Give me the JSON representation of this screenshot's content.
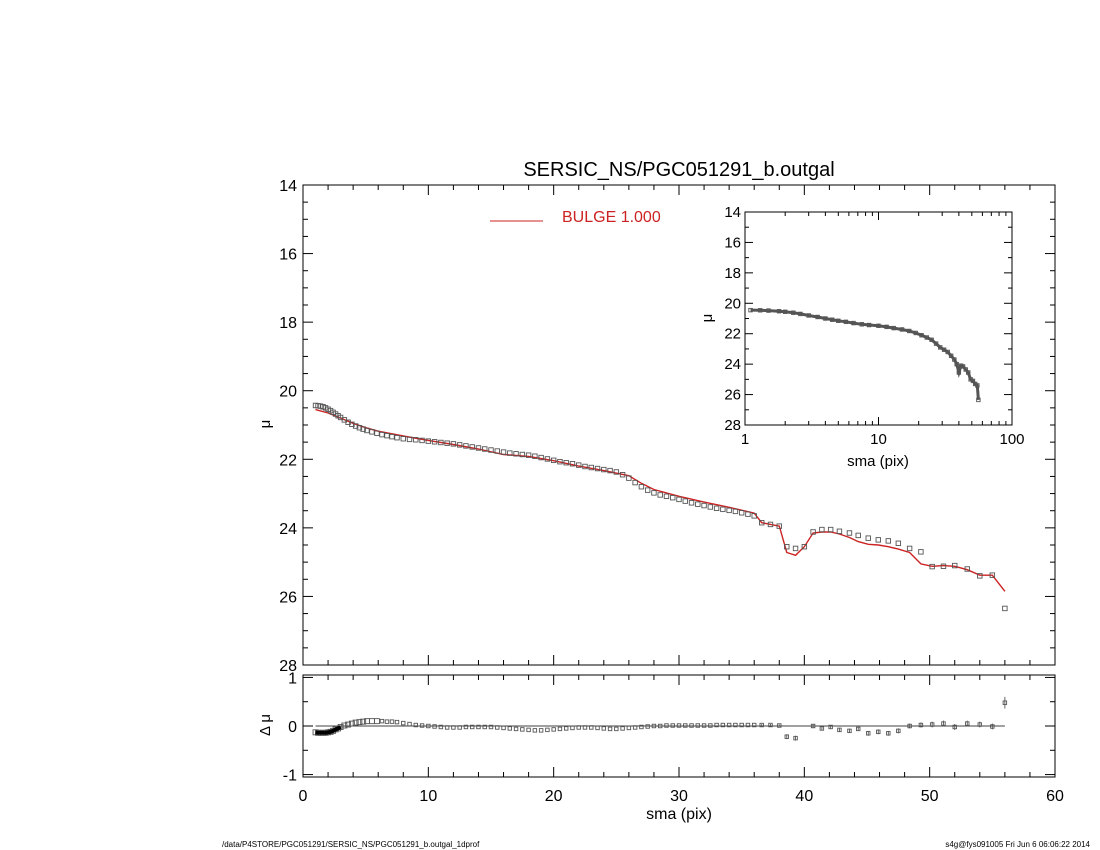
{
  "chart_data": [
    {
      "type": "scatter",
      "panel": "main",
      "title": "SERSIC_NS/PGC051291_b.outgal",
      "ylabel": "μ",
      "xlim": [
        0,
        60
      ],
      "ylim": [
        28,
        14
      ],
      "yreversed": true,
      "xticks": [],
      "yticks": [
        "14",
        "16",
        "18",
        "20",
        "22",
        "24",
        "26",
        "28"
      ],
      "legend": {
        "placement": "top-center",
        "label": "BULGE  1.000",
        "color": "#cc2222"
      },
      "series": [
        {
          "kind": "data",
          "marker": "open-square",
          "x": [
            1.0,
            1.2,
            1.4,
            1.6,
            1.8,
            2.0,
            2.2,
            2.4,
            2.6,
            2.8,
            3.0,
            3.3,
            3.6,
            3.9,
            4.2,
            4.5,
            4.8,
            5.1,
            5.5,
            5.9,
            6.3,
            6.7,
            7.1,
            7.5,
            8.0,
            8.5,
            9.0,
            9.5,
            10.0,
            10.5,
            11.0,
            11.5,
            12.0,
            12.5,
            13.0,
            13.5,
            14.0,
            14.5,
            15.0,
            15.5,
            16.0,
            16.5,
            17.0,
            17.5,
            18.0,
            18.5,
            19.0,
            19.5,
            20.0,
            20.5,
            21.0,
            21.5,
            22.0,
            22.5,
            23.0,
            23.5,
            24.0,
            24.5,
            25.0,
            25.5,
            26.0,
            26.5,
            27.0,
            27.5,
            28.0,
            28.5,
            29.0,
            29.5,
            30.0,
            30.5,
            31.0,
            31.5,
            32.0,
            32.5,
            33.0,
            33.5,
            34.0,
            34.5,
            35.0,
            35.5,
            36.0,
            36.6,
            37.3,
            38.0,
            38.6,
            39.3,
            40.0,
            40.7,
            41.4,
            42.1,
            42.8,
            43.6,
            44.3,
            45.1,
            45.9,
            46.7,
            47.5,
            48.4,
            49.3,
            50.2,
            51.1,
            52.0,
            53.0,
            54.0,
            55.0,
            56.0
          ],
          "y": [
            20.43,
            20.44,
            20.45,
            20.47,
            20.5,
            20.54,
            20.58,
            20.63,
            20.68,
            20.73,
            20.78,
            20.85,
            20.92,
            20.98,
            21.03,
            21.08,
            21.12,
            21.16,
            21.2,
            21.24,
            21.28,
            21.31,
            21.34,
            21.37,
            21.4,
            21.42,
            21.43,
            21.45,
            21.47,
            21.49,
            21.51,
            21.53,
            21.55,
            21.58,
            21.61,
            21.64,
            21.67,
            21.7,
            21.73,
            21.76,
            21.79,
            21.82,
            21.84,
            21.86,
            21.88,
            21.91,
            21.95,
            21.99,
            22.03,
            22.07,
            22.1,
            22.13,
            22.17,
            22.21,
            22.24,
            22.27,
            22.3,
            22.33,
            22.37,
            22.45,
            22.55,
            22.68,
            22.8,
            22.9,
            22.98,
            23.04,
            23.08,
            23.12,
            23.17,
            23.22,
            23.27,
            23.31,
            23.35,
            23.39,
            23.43,
            23.46,
            23.49,
            23.52,
            23.56,
            23.6,
            23.65,
            23.85,
            23.9,
            23.95,
            24.55,
            24.6,
            24.55,
            24.12,
            24.05,
            24.05,
            24.1,
            24.15,
            24.22,
            24.3,
            24.35,
            24.38,
            24.45,
            24.6,
            24.7,
            25.13,
            25.12,
            25.1,
            25.2,
            25.4,
            25.38,
            26.35
          ]
        },
        {
          "kind": "model",
          "name": "BULGE  1.000",
          "line": "solid",
          "color": "#cc2222",
          "x": [
            1.0,
            2.0,
            3.0,
            4.0,
            5.0,
            6.0,
            8.0,
            10.0,
            12.0,
            14.0,
            16.0,
            18.0,
            20.0,
            22.0,
            24.0,
            26.0,
            27.0,
            28.0,
            30.0,
            32.0,
            34.0,
            36.0,
            36.6,
            37.3,
            38.0,
            38.6,
            39.3,
            40.0,
            40.7,
            41.4,
            42.1,
            42.8,
            43.6,
            44.3,
            45.1,
            45.9,
            46.7,
            47.5,
            48.4,
            49.3,
            50.2,
            51.1,
            52.0,
            53.0,
            54.0,
            55.0,
            56.0
          ],
          "y": [
            20.55,
            20.65,
            20.8,
            20.95,
            21.08,
            21.18,
            21.32,
            21.45,
            21.57,
            21.7,
            21.86,
            21.92,
            22.04,
            22.2,
            22.33,
            22.48,
            22.7,
            22.88,
            23.08,
            23.25,
            23.4,
            23.57,
            23.85,
            23.9,
            23.95,
            24.72,
            24.8,
            24.55,
            24.15,
            24.12,
            24.12,
            24.18,
            24.28,
            24.4,
            24.48,
            24.5,
            24.55,
            24.62,
            24.72,
            25.05,
            25.12,
            25.1,
            25.12,
            25.22,
            25.38,
            25.38,
            25.85
          ]
        }
      ]
    },
    {
      "type": "scatter",
      "panel": "inset",
      "xlabel": "sma (pix)",
      "ylabel": "μ",
      "xscale": "log",
      "xlim": [
        1,
        100
      ],
      "ylim": [
        28,
        14
      ],
      "yreversed": true,
      "xticks": [
        "1",
        "10",
        "100"
      ],
      "yticks": [
        "14",
        "16",
        "18",
        "20",
        "22",
        "24",
        "26",
        "28"
      ],
      "series": [
        {
          "kind": "data",
          "marker": "open-square",
          "x": [
            1.1,
            1.3,
            1.5,
            1.8,
            2.0,
            2.3,
            2.6,
            3.0,
            3.5,
            4.0,
            4.5,
            5.0,
            5.7,
            6.5,
            7.5,
            8.5,
            10.0,
            11.5,
            13.0,
            15.0,
            17.0,
            19.0,
            21.0,
            23.0,
            25.0,
            27.0,
            29.0,
            31.0,
            33.0,
            35.0,
            37.0,
            38.5,
            40.0,
            41.5,
            43.0,
            45.0,
            47.0,
            49.0,
            51.0,
            53.0,
            55.0,
            56.0
          ],
          "y": [
            20.45,
            20.46,
            20.48,
            20.52,
            20.56,
            20.62,
            20.7,
            20.8,
            20.9,
            21.0,
            21.08,
            21.15,
            21.22,
            21.3,
            21.38,
            21.43,
            21.48,
            21.55,
            21.63,
            21.72,
            21.82,
            21.95,
            22.1,
            22.25,
            22.4,
            22.65,
            22.9,
            23.05,
            23.2,
            23.45,
            23.7,
            24.0,
            24.55,
            24.1,
            24.15,
            24.35,
            24.55,
            25.0,
            25.1,
            25.3,
            25.4,
            26.35
          ]
        }
      ]
    },
    {
      "type": "scatter",
      "panel": "residual",
      "xlabel": "sma (pix)",
      "ylabel": "Δ μ",
      "xlim": [
        0,
        60
      ],
      "ylim": [
        -1,
        1
      ],
      "xticks": [
        "0",
        "10",
        "20",
        "30",
        "40",
        "50",
        "60"
      ],
      "yticks": [
        "1",
        "0",
        "-1"
      ],
      "series": [
        {
          "kind": "residual",
          "marker": "open-square",
          "x": [
            1.0,
            1.2,
            1.4,
            1.6,
            1.8,
            2.0,
            2.2,
            2.4,
            2.6,
            2.8,
            3.0,
            3.3,
            3.6,
            3.9,
            4.2,
            4.5,
            4.8,
            5.1,
            5.5,
            5.9,
            6.3,
            6.7,
            7.1,
            7.5,
            8.0,
            8.5,
            9.0,
            9.5,
            10.0,
            10.5,
            11.0,
            11.5,
            12.0,
            12.5,
            13.0,
            13.5,
            14.0,
            14.5,
            15.0,
            15.5,
            16.0,
            16.5,
            17.0,
            17.5,
            18.0,
            18.5,
            19.0,
            19.5,
            20.0,
            20.5,
            21.0,
            21.5,
            22.0,
            22.5,
            23.0,
            23.5,
            24.0,
            24.5,
            25.0,
            25.5,
            26.0,
            26.5,
            27.0,
            27.5,
            28.0,
            28.5,
            29.0,
            29.5,
            30.0,
            30.5,
            31.0,
            31.5,
            32.0,
            32.5,
            33.0,
            33.5,
            34.0,
            34.5,
            35.0,
            35.5,
            36.0,
            36.6,
            37.3,
            38.0,
            38.6,
            39.3,
            40.7,
            41.4,
            42.1,
            42.8,
            43.6,
            44.3,
            45.1,
            45.9,
            46.7,
            47.5,
            48.4,
            49.3,
            50.2,
            51.1,
            52.0,
            53.0,
            54.0,
            55.0,
            56.0
          ],
          "y": [
            -0.13,
            -0.14,
            -0.14,
            -0.14,
            -0.14,
            -0.13,
            -0.12,
            -0.1,
            -0.07,
            -0.05,
            -0.02,
            0.01,
            0.03,
            0.05,
            0.07,
            0.08,
            0.09,
            0.1,
            0.1,
            0.1,
            0.1,
            0.09,
            0.09,
            0.08,
            0.06,
            0.04,
            0.02,
            0.01,
            0.0,
            -0.01,
            -0.02,
            -0.03,
            -0.03,
            -0.03,
            -0.02,
            -0.02,
            -0.02,
            -0.02,
            -0.02,
            -0.03,
            -0.04,
            -0.05,
            -0.06,
            -0.07,
            -0.08,
            -0.09,
            -0.09,
            -0.08,
            -0.07,
            -0.06,
            -0.05,
            -0.04,
            -0.03,
            -0.03,
            -0.03,
            -0.04,
            -0.05,
            -0.06,
            -0.06,
            -0.05,
            -0.04,
            -0.03,
            -0.02,
            -0.01,
            0.0,
            0.0,
            0.01,
            0.01,
            0.01,
            0.01,
            0.01,
            0.01,
            0.01,
            0.01,
            0.02,
            0.02,
            0.02,
            0.02,
            0.02,
            0.02,
            0.02,
            0.02,
            0.02,
            0.01,
            -0.22,
            -0.25,
            0.0,
            -0.05,
            -0.02,
            -0.08,
            -0.1,
            -0.06,
            -0.15,
            -0.12,
            -0.15,
            -0.1,
            0.0,
            0.02,
            0.03,
            0.05,
            -0.02,
            0.05,
            0.03,
            -0.01,
            0.48
          ],
          "yerr": [
            0.01,
            0.01,
            0.01,
            0.01,
            0.01,
            0.01,
            0.01,
            0.01,
            0.01,
            0.01,
            0.01,
            0.01,
            0.01,
            0.01,
            0.01,
            0.01,
            0.01,
            0.01,
            0.01,
            0.01,
            0.01,
            0.01,
            0.01,
            0.01,
            0.01,
            0.01,
            0.01,
            0.01,
            0.01,
            0.01,
            0.01,
            0.01,
            0.01,
            0.01,
            0.01,
            0.01,
            0.01,
            0.01,
            0.01,
            0.01,
            0.01,
            0.01,
            0.01,
            0.01,
            0.01,
            0.01,
            0.01,
            0.01,
            0.01,
            0.01,
            0.01,
            0.01,
            0.01,
            0.01,
            0.01,
            0.01,
            0.01,
            0.01,
            0.01,
            0.01,
            0.01,
            0.01,
            0.01,
            0.01,
            0.01,
            0.01,
            0.01,
            0.01,
            0.01,
            0.01,
            0.01,
            0.01,
            0.01,
            0.01,
            0.01,
            0.01,
            0.01,
            0.01,
            0.01,
            0.01,
            0.01,
            0.02,
            0.02,
            0.02,
            0.05,
            0.05,
            0.04,
            0.03,
            0.03,
            0.04,
            0.04,
            0.04,
            0.05,
            0.05,
            0.05,
            0.05,
            0.05,
            0.05,
            0.06,
            0.06,
            0.06,
            0.06,
            0.06,
            0.06,
            0.12
          ]
        }
      ]
    }
  ],
  "footer": {
    "left": "/data/P4STORE/PGC051291/SERSIC_NS/PGC051291_b.outgal_1dprof",
    "right": "s4g@fys091005  Fri Jun  6 06:06:22 2014"
  },
  "colors": {
    "axis": "#000000",
    "marker": "#555555",
    "model": "#cc2222"
  }
}
